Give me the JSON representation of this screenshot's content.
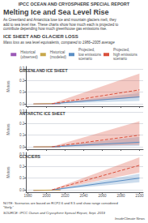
{
  "header": "IPCC OCEAN AND CRYOSPHERE SPECIAL REPORT",
  "title": "Melting Ice and Sea Level Rise",
  "subtitle": "As Greenland and Antarctica lose ice and mountain glaciers melt, they\nadd to sea level rise. These charts show how much each is projected to\ncontribute depending how much greenhouse gas emissions rise.",
  "section_label": "ICE SHEET AND GLACIER LOSS",
  "section_sublabel": "Mass loss as sea level equivalents, compared to 1986–2005 average",
  "note": "NOTE: Scenarios are based on RCP2.6 and 8.5 and show range considered “likely.”",
  "source": "SOURCE: IPCC Ocean and Cryosphere Special Report, Sept. 2019",
  "source_right": "InsideClimate News",
  "chart_data": [
    {
      "type": "line",
      "title": "GREENLAND ICE SHEET",
      "ylabel": "Meters",
      "xlim": [
        1978,
        2104
      ],
      "xticks": [
        1980,
        2000,
        2020,
        2040,
        2060,
        2080,
        2100
      ],
      "ylim": [
        -0.02,
        0.32
      ],
      "yticks": [
        {
          "value": 0,
          "label": "0.0"
        },
        0.1,
        0.2,
        0.3
      ],
      "grid": true,
      "legend": "top",
      "tick_labels": "y",
      "series": [
        {
          "name": "Historical\n(observed)",
          "color": "#9b59b6",
          "x": [
            1986,
            2015
          ],
          "values": [
            0.0,
            0.002
          ]
        },
        {
          "name": "Historical\n(modeled)",
          "color": "#c8a84b",
          "x": [
            1986,
            2015
          ],
          "values": [
            0.0,
            0.004
          ]
        },
        {
          "name": "Projected,\nlow emissions\nscenario",
          "color": "#5b8ec4",
          "x": [
            2006,
            2100
          ],
          "values": [
            0.002,
            0.06
          ],
          "lower": [
            0.001,
            0.025
          ],
          "upper": [
            0.003,
            0.095
          ]
        },
        {
          "name": "Projected,\nhigh emissions\nscenario",
          "color": "#d9503c",
          "line_style": "dashed",
          "x": [
            2006,
            2100
          ],
          "values": [
            0.002,
            0.12
          ],
          "lower": [
            0.001,
            0.055
          ],
          "upper": [
            0.004,
            0.26
          ]
        }
      ]
    },
    {
      "type": "line",
      "title": "ANTARCTIC ICE SHEET",
      "ylabel": "Meters",
      "xlim": [
        1978,
        2104
      ],
      "xticks": [
        1980,
        2000,
        2020,
        2040,
        2060,
        2080,
        2100
      ],
      "ylim": [
        -0.02,
        0.32
      ],
      "yticks": [
        {
          "value": 0,
          "label": "0.0"
        },
        0.1,
        0.2,
        0.3
      ],
      "grid": true,
      "tick_labels": "y",
      "series": [
        {
          "name": "Historical\n(observed)",
          "color": "#9b59b6",
          "x": [
            1986,
            2015
          ],
          "values": [
            0.0,
            0.001
          ]
        },
        {
          "name": "Historical\n(modeled)",
          "color": "#c8a84b",
          "x": [
            1986,
            2015
          ],
          "values": [
            0.0,
            0.002
          ]
        },
        {
          "name": "Projected,\nlow emissions\nscenario",
          "color": "#5b8ec4",
          "x": [
            2006,
            2100
          ],
          "values": [
            0.001,
            0.04
          ],
          "lower": [
            0.0,
            0.008
          ],
          "upper": [
            0.002,
            0.085
          ]
        },
        {
          "name": "Projected,\nhigh emissions\nscenario",
          "color": "#d9503c",
          "line_style": "dashed",
          "x": [
            2006,
            2100
          ],
          "values": [
            0.001,
            0.1
          ],
          "lower": [
            0.0,
            0.018
          ],
          "upper": [
            0.003,
            0.22
          ]
        }
      ]
    },
    {
      "type": "line",
      "title": "GLACIERS",
      "ylabel": "Meters",
      "xlim": [
        1978,
        2104
      ],
      "xticks": [
        1980,
        2000,
        2020,
        2040,
        2060,
        2080,
        2100
      ],
      "ylim": [
        -0.02,
        0.32
      ],
      "yticks": [
        {
          "value": 0,
          "label": "0.0"
        },
        0.1,
        0.2,
        0.3
      ],
      "grid": true,
      "series": [
        {
          "name": "Historical\n(observed)",
          "color": "#9b59b6",
          "x": [
            1986,
            2015
          ],
          "values": [
            -0.005,
            -0.002
          ]
        },
        {
          "name": "Historical\n(modeled)",
          "color": "#c8a84b",
          "x": [
            1986,
            2015
          ],
          "values": [
            -0.004,
            -0.001
          ]
        },
        {
          "name": "Projected,\nlow emissions\nscenario",
          "color": "#5b8ec4",
          "x": [
            2006,
            2100
          ],
          "values": [
            -0.001,
            0.1
          ],
          "lower": [
            -0.003,
            0.065
          ],
          "upper": [
            0.001,
            0.138
          ]
        },
        {
          "name": "Projected,\nhigh emissions\nscenario",
          "color": "#d9503c",
          "line_style": "dashed",
          "x": [
            2006,
            2100
          ],
          "values": [
            0.0,
            0.21
          ],
          "lower": [
            -0.002,
            0.148
          ],
          "upper": [
            0.002,
            0.278
          ]
        }
      ]
    }
  ]
}
